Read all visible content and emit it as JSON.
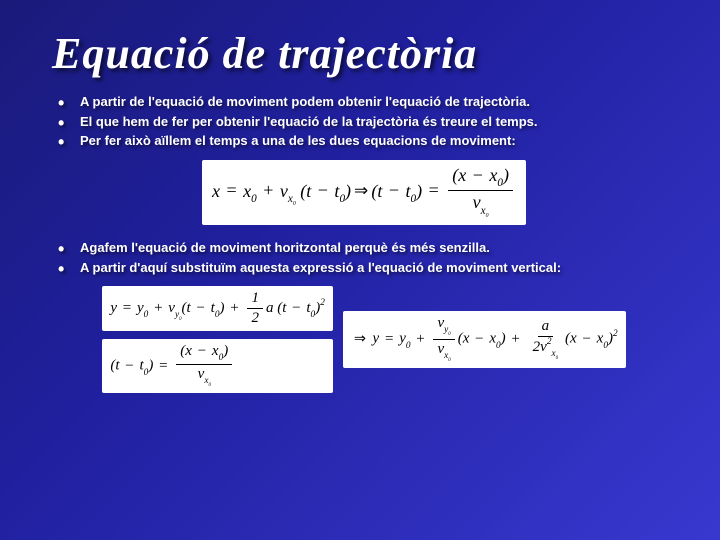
{
  "slide": {
    "title": "Equació de trajectòria",
    "background_gradient": [
      "#1a1a7a",
      "#2020a0",
      "#3838d0"
    ],
    "title_color": "#ffffff",
    "text_color": "#ffffff",
    "eq_box_bg": "#ffffff",
    "eq_box_fg": "#000000",
    "bullets_block1": [
      "A partir de l'equació de moviment podem obtenir l'equació de trajectòria.",
      "El que hem de fer per obtenir l'equació de la trajectòria és treure el temps.",
      "Per fer això aïllem el temps a una de les dues equacions de moviment:"
    ],
    "bullets_block2": [
      "Agafem l'equació de moviment horitzontal perquè és més senzilla.",
      "A partir d'aquí substituïm aquesta expressió a l'equació de moviment vertical:"
    ]
  }
}
